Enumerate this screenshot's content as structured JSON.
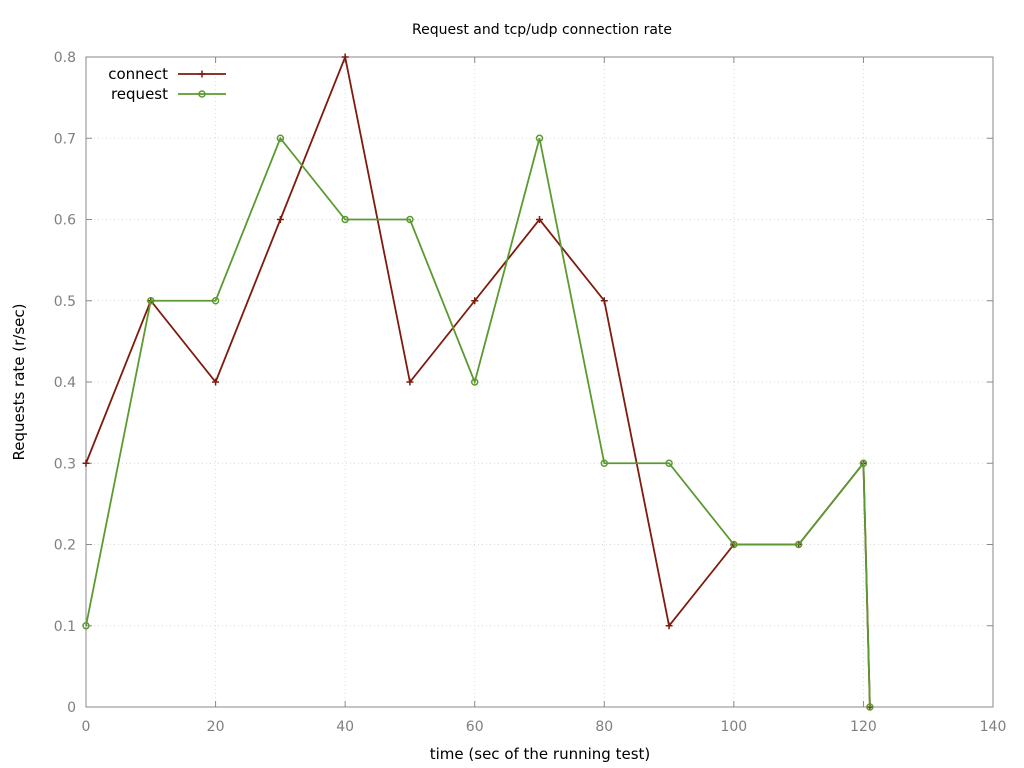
{
  "chart_data": {
    "type": "line",
    "title": "Request and tcp/udp connection rate",
    "xlabel": "time (sec of the running test)",
    "ylabel": "Requests rate (r/sec)",
    "xlim": [
      0,
      140
    ],
    "ylim": [
      0,
      0.8
    ],
    "x_ticks": [
      0,
      20,
      40,
      60,
      80,
      100,
      120,
      140
    ],
    "y_ticks": [
      0,
      0.1,
      0.2,
      0.3,
      0.4,
      0.5,
      0.6,
      0.7,
      0.8
    ],
    "x_tick_labels": [
      "0",
      "20",
      "40",
      "60",
      "80",
      "100",
      "120",
      "140"
    ],
    "y_tick_labels": [
      "0",
      "0.1",
      "0.2",
      "0.3",
      "0.4",
      "0.5",
      "0.6",
      "0.7",
      "0.8"
    ],
    "grid": true,
    "legend_position": "top-left",
    "series": [
      {
        "name": "connect",
        "color": "#7f1a0e",
        "marker": "plus",
        "x": [
          0,
          10,
          20,
          30,
          40,
          50,
          60,
          70,
          80,
          90,
          100,
          110,
          120,
          121
        ],
        "y": [
          0.3,
          0.5,
          0.4,
          0.6,
          0.8,
          0.4,
          0.5,
          0.6,
          0.5,
          0.1,
          0.2,
          0.2,
          0.3,
          0
        ]
      },
      {
        "name": "request",
        "color": "#5b9a30",
        "marker": "circle",
        "x": [
          0,
          10,
          20,
          30,
          40,
          50,
          60,
          70,
          80,
          90,
          100,
          110,
          120,
          121
        ],
        "y": [
          0.1,
          0.5,
          0.5,
          0.7,
          0.6,
          0.6,
          0.4,
          0.7,
          0.3,
          0.3,
          0.2,
          0.2,
          0.3,
          0
        ]
      }
    ]
  }
}
